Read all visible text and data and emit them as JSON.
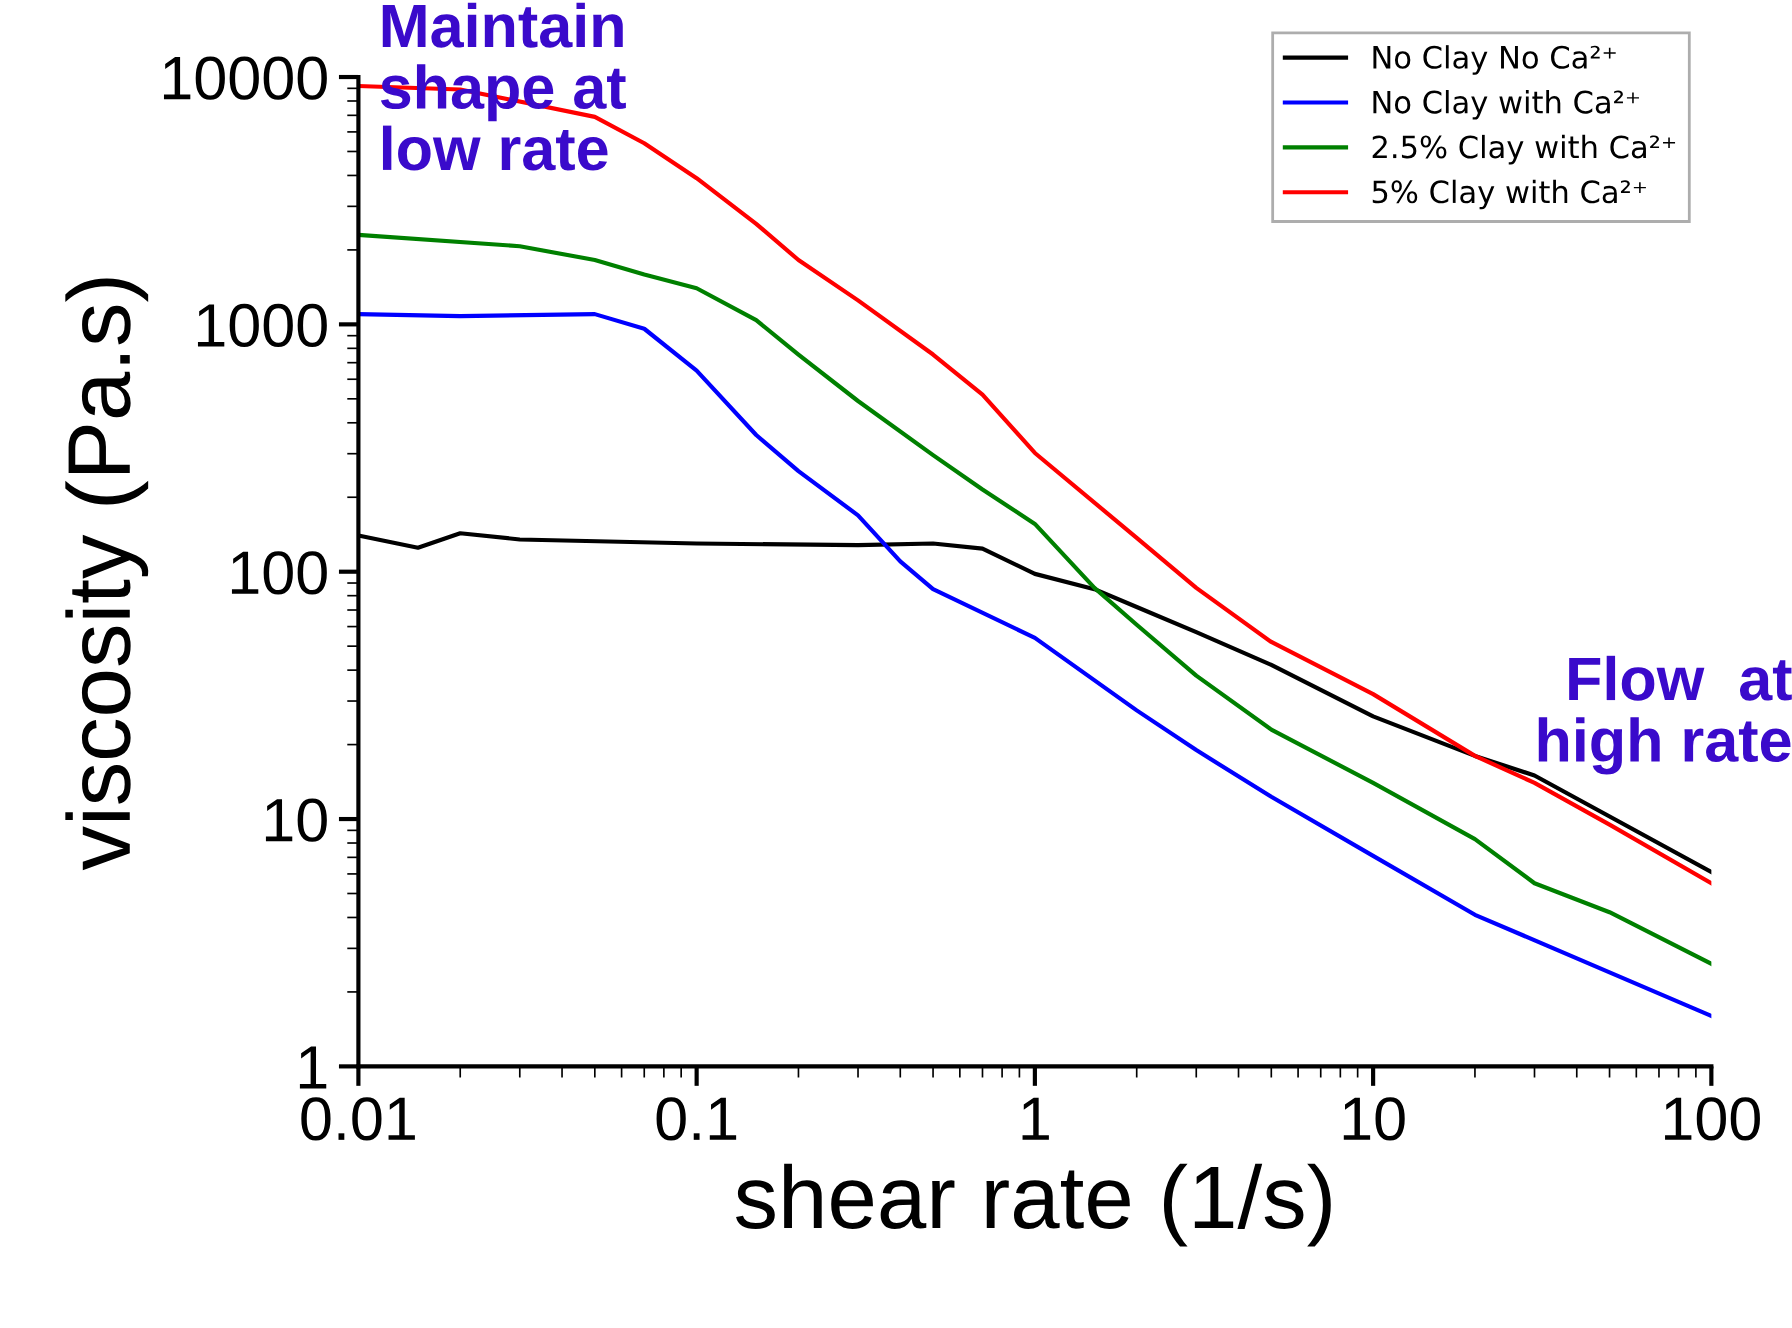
{
  "chart_data": {
    "type": "line",
    "xlabel": "shear rate (1/s)",
    "ylabel": "viscosity (Pa.s)",
    "log": "xy",
    "xlim": [
      0.01,
      100
    ],
    "xticks": [
      0.01,
      0.1,
      1,
      10,
      100
    ],
    "ylim": [
      1,
      10000
    ],
    "yticks": [
      1,
      10,
      100,
      1000,
      10000
    ],
    "grid": false,
    "legend": "top right",
    "marker": "none",
    "line_style": "solid",
    "annotations": [
      "Maintain\nshape at\nlow rate",
      "Flow  at\nhigh rate"
    ],
    "series": [
      {
        "name": "No Clay No Ca²⁺",
        "color": "#000000",
        "x": [
          0.01,
          0.015,
          0.02,
          0.03,
          0.1,
          0.3,
          0.5,
          0.7,
          1,
          1.5,
          2,
          3,
          5,
          10,
          20,
          30,
          100
        ],
        "values": [
          140,
          125,
          143,
          135,
          130,
          128,
          130,
          124,
          98,
          85,
          72,
          57,
          42,
          26,
          18,
          15,
          6.1
        ]
      },
      {
        "name": "No Clay with Ca²⁺",
        "color": "#0000ff",
        "x": [
          0.01,
          0.02,
          0.05,
          0.07,
          0.1,
          0.15,
          0.2,
          0.3,
          0.4,
          0.5,
          1,
          2,
          3,
          5,
          10,
          20,
          50,
          100
        ],
        "values": [
          1100,
          1080,
          1100,
          960,
          650,
          357,
          255,
          169,
          110,
          85,
          54,
          27.5,
          19,
          12.3,
          7.1,
          4.1,
          2.4,
          1.6
        ]
      },
      {
        "name": "2.5% Clay with Ca²⁺",
        "color": "#008000",
        "x": [
          0.01,
          0.03,
          0.05,
          0.07,
          0.1,
          0.15,
          0.2,
          0.3,
          0.5,
          0.7,
          1,
          1.5,
          2,
          3,
          5,
          10,
          20,
          30,
          50,
          100
        ],
        "values": [
          2300,
          2070,
          1820,
          1590,
          1400,
          1040,
          755,
          490,
          296,
          215,
          156,
          86,
          61,
          38,
          23,
          14,
          8.3,
          5.5,
          4.2,
          2.6
        ]
      },
      {
        "name": "5% Clay with Ca²⁺",
        "color": "#ff0000",
        "x": [
          0.01,
          0.02,
          0.05,
          0.07,
          0.1,
          0.15,
          0.2,
          0.3,
          0.5,
          0.7,
          1,
          2,
          3,
          5,
          10,
          20,
          30,
          50,
          100
        ],
        "values": [
          9200,
          8900,
          6900,
          5400,
          3900,
          2550,
          1820,
          1250,
          755,
          520,
          302,
          137,
          86,
          52,
          32,
          18,
          14,
          9.5,
          5.5
        ]
      }
    ]
  }
}
